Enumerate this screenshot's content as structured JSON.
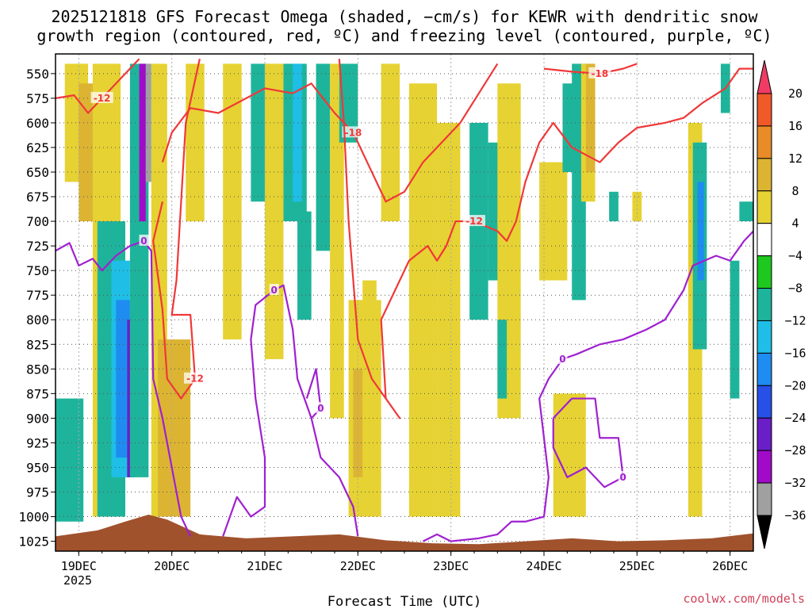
{
  "chart_data": {
    "type": "heatmap",
    "title_line1": "2025121818 GFS Forecast Omega (shaded, −cm/s) for KEWR with dendritic snow",
    "title_line2": "growth region (contoured, red, ºC) and freezing level (contoured, purple, ºC)",
    "xlabel": "Forecast Time (UTC)",
    "ylabel": "",
    "x_ticks": [
      "19DEC",
      "20DEC",
      "21DEC",
      "22DEC",
      "23DEC",
      "24DEC",
      "25DEC",
      "26DEC"
    ],
    "x_year_label": "2025",
    "y_ticks": [
      550,
      575,
      600,
      625,
      650,
      675,
      700,
      725,
      750,
      775,
      800,
      825,
      850,
      875,
      900,
      925,
      950,
      975,
      1000,
      1025
    ],
    "y_range_hpa": [
      530,
      1035
    ],
    "x_range_days": [
      18.75,
      26.25
    ],
    "grid": true,
    "colorbar": {
      "levels": [
        "20",
        "16",
        "12",
        "8",
        "4",
        "−4",
        "−8",
        "−12",
        "−16",
        "−20",
        "−24",
        "−28",
        "−32",
        "−36"
      ],
      "colors": [
        "#f03c64",
        "#f05a28",
        "#e88c28",
        "#dcb432",
        "#e6d232",
        "#ffffff",
        "#1ec81e",
        "#1eb49b",
        "#1ebee6",
        "#1e8cf0",
        "#2850e6",
        "#6a1ec8",
        "#a00ac8",
        "#a0a0a0",
        "#000000"
      ]
    },
    "omega_regions": [
      {
        "x0": 18.85,
        "x1": 19.1,
        "p0": 540,
        "p1": 660,
        "value": 4
      },
      {
        "x0": 19.0,
        "x1": 19.25,
        "p0": 560,
        "p1": 700,
        "value": 8
      },
      {
        "x0": 19.15,
        "x1": 19.45,
        "p0": 540,
        "p1": 1000,
        "value": 4
      },
      {
        "x0": 19.2,
        "x1": 19.5,
        "p0": 700,
        "p1": 1000,
        "value": -8
      },
      {
        "x0": 19.35,
        "x1": 19.55,
        "p0": 740,
        "p1": 960,
        "value": -12
      },
      {
        "x0": 19.4,
        "x1": 19.55,
        "p0": 780,
        "p1": 940,
        "value": -16
      },
      {
        "x0": 19.52,
        "x1": 19.6,
        "p0": 800,
        "p1": 960,
        "value": -24
      },
      {
        "x0": 18.75,
        "x1": 19.05,
        "p0": 880,
        "p1": 1005,
        "value": -8
      },
      {
        "x0": 19.55,
        "x1": 19.75,
        "p0": 540,
        "p1": 960,
        "value": -8
      },
      {
        "x0": 19.65,
        "x1": 19.72,
        "p0": 540,
        "p1": 700,
        "value": -28
      },
      {
        "x0": 19.72,
        "x1": 19.78,
        "p0": 540,
        "p1": 660,
        "value": -32
      },
      {
        "x0": 19.78,
        "x1": 19.95,
        "p0": 540,
        "p1": 1000,
        "value": 4
      },
      {
        "x0": 19.85,
        "x1": 20.2,
        "p0": 820,
        "p1": 1000,
        "value": 8
      },
      {
        "x0": 20.15,
        "x1": 20.35,
        "p0": 540,
        "p1": 700,
        "value": 4
      },
      {
        "x0": 20.55,
        "x1": 20.75,
        "p0": 540,
        "p1": 820,
        "value": 4
      },
      {
        "x0": 20.85,
        "x1": 21.05,
        "p0": 540,
        "p1": 680,
        "value": -8
      },
      {
        "x0": 21.0,
        "x1": 21.2,
        "p0": 540,
        "p1": 840,
        "value": 4
      },
      {
        "x0": 21.2,
        "x1": 21.45,
        "p0": 540,
        "p1": 700,
        "value": -8
      },
      {
        "x0": 21.3,
        "x1": 21.4,
        "p0": 540,
        "p1": 680,
        "value": -12
      },
      {
        "x0": 21.35,
        "x1": 21.5,
        "p0": 690,
        "p1": 800,
        "value": -8
      },
      {
        "x0": 21.55,
        "x1": 21.7,
        "p0": 540,
        "p1": 730,
        "value": -8
      },
      {
        "x0": 21.7,
        "x1": 21.85,
        "p0": 540,
        "p1": 900,
        "value": 4
      },
      {
        "x0": 21.8,
        "x1": 22.0,
        "p0": 540,
        "p1": 620,
        "value": -8
      },
      {
        "x0": 21.9,
        "x1": 22.25,
        "p0": 780,
        "p1": 1000,
        "value": 4
      },
      {
        "x0": 21.95,
        "x1": 22.1,
        "p0": 850,
        "p1": 960,
        "value": 8
      },
      {
        "x0": 22.05,
        "x1": 22.2,
        "p0": 760,
        "p1": 1000,
        "value": 4
      },
      {
        "x0": 22.25,
        "x1": 22.45,
        "p0": 540,
        "p1": 700,
        "value": 4
      },
      {
        "x0": 22.55,
        "x1": 22.85,
        "p0": 560,
        "p1": 1000,
        "value": 4
      },
      {
        "x0": 22.85,
        "x1": 23.1,
        "p0": 600,
        "p1": 1000,
        "value": 4
      },
      {
        "x0": 23.2,
        "x1": 23.4,
        "p0": 600,
        "p1": 800,
        "value": -8
      },
      {
        "x0": 23.4,
        "x1": 23.6,
        "p0": 620,
        "p1": 760,
        "value": -8
      },
      {
        "x0": 23.5,
        "x1": 23.75,
        "p0": 560,
        "p1": 900,
        "value": 4
      },
      {
        "x0": 23.5,
        "x1": 23.6,
        "p0": 800,
        "p1": 880,
        "value": -8
      },
      {
        "x0": 23.95,
        "x1": 24.25,
        "p0": 640,
        "p1": 760,
        "value": 4
      },
      {
        "x0": 24.1,
        "x1": 24.45,
        "p0": 875,
        "p1": 1000,
        "value": 4
      },
      {
        "x0": 24.2,
        "x1": 24.35,
        "p0": 560,
        "p1": 650,
        "value": -8
      },
      {
        "x0": 24.3,
        "x1": 24.45,
        "p0": 540,
        "p1": 780,
        "value": -8
      },
      {
        "x0": 24.4,
        "x1": 24.55,
        "p0": 540,
        "p1": 680,
        "value": 4
      },
      {
        "x0": 24.45,
        "x1": 24.55,
        "p0": 540,
        "p1": 650,
        "value": 8
      },
      {
        "x0": 24.7,
        "x1": 24.8,
        "p0": 670,
        "p1": 700,
        "value": -8
      },
      {
        "x0": 24.95,
        "x1": 25.05,
        "p0": 670,
        "p1": 700,
        "value": 4
      },
      {
        "x0": 25.55,
        "x1": 25.7,
        "p0": 600,
        "p1": 1000,
        "value": 4
      },
      {
        "x0": 25.6,
        "x1": 25.75,
        "p0": 620,
        "p1": 830,
        "value": -8
      },
      {
        "x0": 25.65,
        "x1": 25.72,
        "p0": 660,
        "p1": 760,
        "value": -16
      },
      {
        "x0": 25.9,
        "x1": 26.0,
        "p0": 540,
        "p1": 590,
        "value": -8
      },
      {
        "x0": 26.0,
        "x1": 26.1,
        "p0": 740,
        "p1": 880,
        "value": -8
      },
      {
        "x0": 26.1,
        "x1": 26.25,
        "p0": 680,
        "p1": 700,
        "value": -8
      }
    ],
    "terrain": {
      "color": "#a0522d",
      "points": [
        [
          18.75,
          1020
        ],
        [
          19.2,
          1014
        ],
        [
          19.5,
          1005
        ],
        [
          19.75,
          998
        ],
        [
          19.95,
          1003
        ],
        [
          20.3,
          1018
        ],
        [
          20.8,
          1022
        ],
        [
          21.3,
          1020
        ],
        [
          21.8,
          1018
        ],
        [
          22.3,
          1024
        ],
        [
          22.8,
          1027
        ],
        [
          23.3,
          1028
        ],
        [
          23.8,
          1025
        ],
        [
          24.3,
          1022
        ],
        [
          24.8,
          1025
        ],
        [
          25.3,
          1024
        ],
        [
          25.8,
          1022
        ],
        [
          26.25,
          1017
        ]
      ]
    },
    "red_contours": [
      {
        "label": "-12",
        "points": [
          [
            18.75,
            575
          ],
          [
            18.95,
            572
          ],
          [
            19.1,
            590
          ],
          [
            19.25,
            575
          ],
          [
            19.4,
            560
          ],
          [
            19.55,
            545
          ],
          [
            19.65,
            535
          ]
        ]
      },
      {
        "label": "-18",
        "points": [
          [
            19.9,
            640
          ],
          [
            20.0,
            610
          ],
          [
            20.2,
            585
          ],
          [
            20.5,
            590
          ],
          [
            20.8,
            575
          ],
          [
            21.0,
            565
          ],
          [
            21.3,
            570
          ],
          [
            21.5,
            560
          ],
          [
            21.75,
            590
          ],
          [
            21.95,
            610
          ],
          [
            22.1,
            640
          ],
          [
            22.3,
            680
          ],
          [
            22.5,
            670
          ],
          [
            22.7,
            640
          ],
          [
            22.85,
            625
          ],
          [
            23.1,
            600
          ],
          [
            23.3,
            570
          ],
          [
            23.5,
            540
          ]
        ]
      },
      {
        "label": "-12",
        "points": [
          [
            20.3,
            535
          ],
          [
            20.15,
            600
          ],
          [
            20.1,
            680
          ],
          [
            20.05,
            760
          ],
          [
            20.0,
            795
          ],
          [
            20.2,
            795
          ],
          [
            20.25,
            860
          ],
          [
            20.1,
            880
          ],
          [
            19.95,
            860
          ],
          [
            19.9,
            790
          ],
          [
            19.8,
            720
          ],
          [
            19.9,
            680
          ]
        ]
      },
      {
        "label": "-12",
        "points": [
          [
            21.8,
            535
          ],
          [
            21.85,
            600
          ],
          [
            21.9,
            700
          ],
          [
            21.95,
            760
          ],
          [
            22.0,
            820
          ],
          [
            22.15,
            860
          ],
          [
            22.3,
            880
          ],
          [
            22.45,
            900
          ],
          [
            22.3,
            880
          ],
          [
            22.25,
            800
          ],
          [
            22.35,
            780
          ],
          [
            22.55,
            740
          ],
          [
            22.75,
            725
          ],
          [
            22.85,
            740
          ],
          [
            22.95,
            725
          ],
          [
            23.05,
            700
          ],
          [
            23.25,
            700
          ],
          [
            23.5,
            710
          ],
          [
            23.6,
            720
          ],
          [
            23.7,
            700
          ],
          [
            23.8,
            660
          ],
          [
            23.95,
            620
          ],
          [
            24.1,
            600
          ],
          [
            24.3,
            625
          ],
          [
            24.6,
            640
          ],
          [
            24.8,
            620
          ],
          [
            25.0,
            605
          ],
          [
            25.3,
            600
          ],
          [
            25.5,
            595
          ],
          [
            25.7,
            580
          ],
          [
            25.95,
            565
          ],
          [
            26.1,
            545
          ],
          [
            26.25,
            545
          ]
        ]
      },
      {
        "label": "-18",
        "points": [
          [
            24.0,
            545
          ],
          [
            24.3,
            548
          ],
          [
            24.6,
            550
          ],
          [
            24.85,
            545
          ],
          [
            25.0,
            540
          ]
        ]
      }
    ],
    "purple_contours": [
      {
        "label": "0",
        "points": [
          [
            18.75,
            730
          ],
          [
            18.9,
            722
          ],
          [
            19.0,
            745
          ],
          [
            19.15,
            738
          ],
          [
            19.25,
            750
          ],
          [
            19.4,
            735
          ],
          [
            19.55,
            725
          ],
          [
            19.7,
            720
          ],
          [
            19.78,
            730
          ],
          [
            19.8,
            860
          ],
          [
            19.9,
            900
          ],
          [
            20.0,
            950
          ],
          [
            20.1,
            1000
          ],
          [
            20.2,
            1020
          ]
        ]
      },
      {
        "label": "0",
        "points": [
          [
            20.55,
            1020
          ],
          [
            20.7,
            980
          ],
          [
            20.85,
            1000
          ],
          [
            21.0,
            990
          ],
          [
            21.0,
            940
          ],
          [
            20.9,
            880
          ],
          [
            20.85,
            820
          ],
          [
            20.9,
            785
          ],
          [
            21.1,
            770
          ],
          [
            21.2,
            765
          ],
          [
            21.3,
            810
          ],
          [
            21.35,
            860
          ],
          [
            21.5,
            900
          ],
          [
            21.6,
            940
          ],
          [
            21.8,
            960
          ],
          [
            21.95,
            990
          ],
          [
            22.0,
            1020
          ]
        ]
      },
      {
        "label": "0",
        "points": [
          [
            21.45,
            880
          ],
          [
            21.55,
            850
          ],
          [
            21.6,
            890
          ],
          [
            21.5,
            900
          ]
        ]
      },
      {
        "label": "0",
        "points": [
          [
            22.7,
            1025
          ],
          [
            22.85,
            1018
          ],
          [
            23.0,
            1025
          ],
          [
            23.3,
            1022
          ],
          [
            23.5,
            1018
          ],
          [
            23.65,
            1005
          ],
          [
            23.8,
            1005
          ],
          [
            24.0,
            1000
          ],
          [
            24.05,
            960
          ],
          [
            23.95,
            880
          ],
          [
            24.05,
            860
          ],
          [
            24.2,
            840
          ],
          [
            24.35,
            835
          ],
          [
            24.6,
            825
          ],
          [
            24.85,
            820
          ],
          [
            25.1,
            810
          ],
          [
            25.3,
            800
          ],
          [
            25.5,
            770
          ],
          [
            25.6,
            745
          ],
          [
            25.85,
            735
          ],
          [
            26.0,
            740
          ],
          [
            26.15,
            720
          ],
          [
            26.25,
            710
          ]
        ]
      },
      {
        "label": "0",
        "points": [
          [
            24.1,
            900
          ],
          [
            24.3,
            880
          ],
          [
            24.55,
            880
          ],
          [
            24.6,
            920
          ],
          [
            24.8,
            920
          ],
          [
            24.85,
            960
          ],
          [
            24.65,
            970
          ],
          [
            24.45,
            950
          ],
          [
            24.25,
            960
          ],
          [
            24.1,
            930
          ],
          [
            24.1,
            900
          ]
        ]
      }
    ],
    "credit": "coolwx.com/models"
  }
}
